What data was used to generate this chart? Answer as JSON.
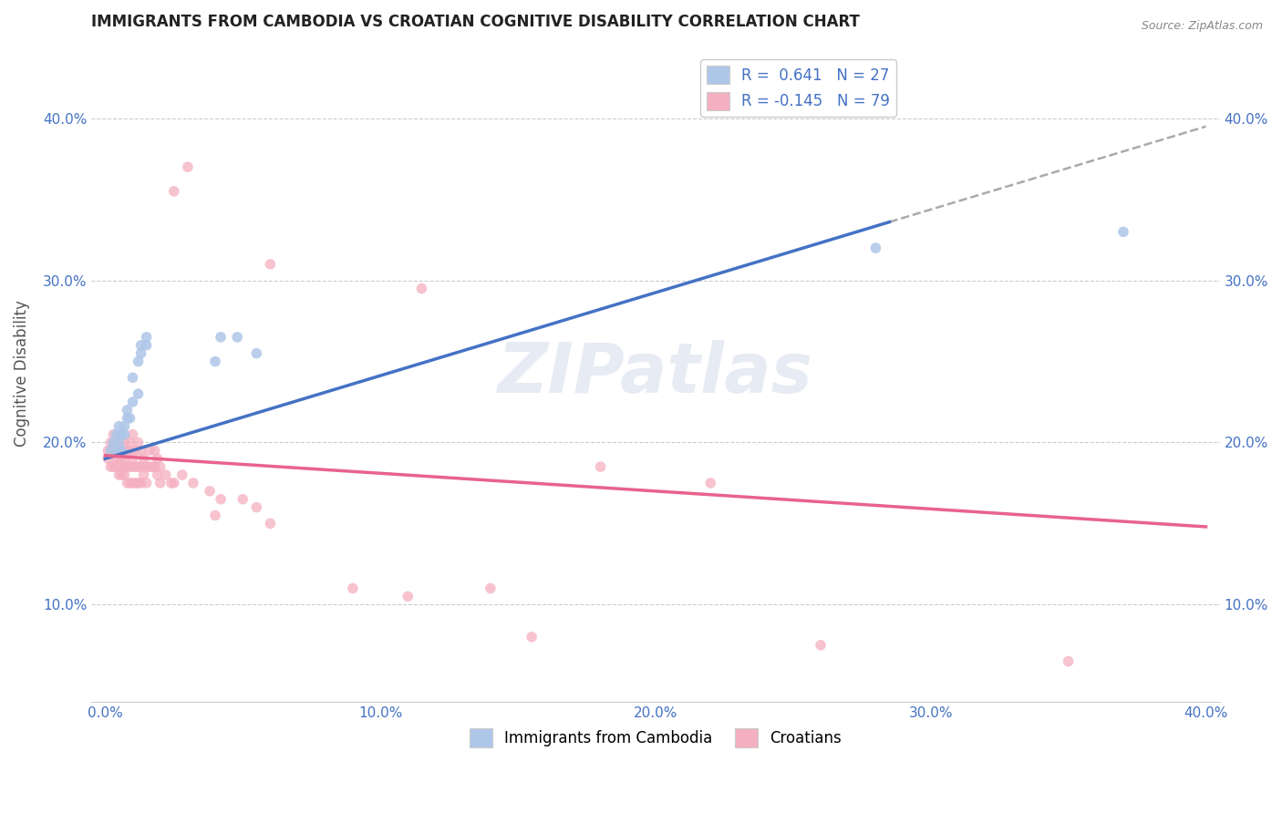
{
  "title": "IMMIGRANTS FROM CAMBODIA VS CROATIAN COGNITIVE DISABILITY CORRELATION CHART",
  "source_text": "Source: ZipAtlas.com",
  "ylabel": "Cognitive Disability",
  "xlabel": "",
  "xlim": [
    -0.005,
    0.405
  ],
  "ylim": [
    0.04,
    0.445
  ],
  "yticks": [
    0.1,
    0.2,
    0.3,
    0.4
  ],
  "ytick_labels": [
    "10.0%",
    "20.0%",
    "30.0%",
    "40.0%"
  ],
  "xticks": [
    0.0,
    0.1,
    0.2,
    0.3,
    0.4
  ],
  "xtick_labels": [
    "0.0%",
    "10.0%",
    "20.0%",
    "30.0%",
    "40.0%"
  ],
  "blue_color": "#aec6e8",
  "blue_line_color": "#4472c4",
  "pink_color": "#f4afc0",
  "pink_line_color": "#e8638c",
  "blue_scatter": [
    [
      0.002,
      0.195
    ],
    [
      0.003,
      0.2
    ],
    [
      0.004,
      0.205
    ],
    [
      0.004,
      0.195
    ],
    [
      0.005,
      0.2
    ],
    [
      0.005,
      0.21
    ],
    [
      0.006,
      0.195
    ],
    [
      0.006,
      0.205
    ],
    [
      0.007,
      0.205
    ],
    [
      0.007,
      0.21
    ],
    [
      0.008,
      0.22
    ],
    [
      0.008,
      0.215
    ],
    [
      0.009,
      0.215
    ],
    [
      0.01,
      0.225
    ],
    [
      0.01,
      0.24
    ],
    [
      0.012,
      0.23
    ],
    [
      0.012,
      0.25
    ],
    [
      0.013,
      0.255
    ],
    [
      0.013,
      0.26
    ],
    [
      0.015,
      0.26
    ],
    [
      0.015,
      0.265
    ],
    [
      0.04,
      0.25
    ],
    [
      0.042,
      0.265
    ],
    [
      0.048,
      0.265
    ],
    [
      0.055,
      0.255
    ],
    [
      0.28,
      0.32
    ],
    [
      0.37,
      0.33
    ]
  ],
  "pink_scatter": [
    [
      0.001,
      0.19
    ],
    [
      0.001,
      0.195
    ],
    [
      0.002,
      0.185
    ],
    [
      0.002,
      0.195
    ],
    [
      0.002,
      0.2
    ],
    [
      0.003,
      0.185
    ],
    [
      0.003,
      0.195
    ],
    [
      0.003,
      0.2
    ],
    [
      0.003,
      0.205
    ],
    [
      0.004,
      0.185
    ],
    [
      0.004,
      0.19
    ],
    [
      0.004,
      0.195
    ],
    [
      0.004,
      0.2
    ],
    [
      0.005,
      0.18
    ],
    [
      0.005,
      0.19
    ],
    [
      0.005,
      0.195
    ],
    [
      0.005,
      0.2
    ],
    [
      0.006,
      0.18
    ],
    [
      0.006,
      0.185
    ],
    [
      0.006,
      0.19
    ],
    [
      0.006,
      0.195
    ],
    [
      0.007,
      0.18
    ],
    [
      0.007,
      0.185
    ],
    [
      0.007,
      0.19
    ],
    [
      0.007,
      0.2
    ],
    [
      0.008,
      0.175
    ],
    [
      0.008,
      0.185
    ],
    [
      0.008,
      0.195
    ],
    [
      0.009,
      0.175
    ],
    [
      0.009,
      0.185
    ],
    [
      0.009,
      0.195
    ],
    [
      0.009,
      0.2
    ],
    [
      0.01,
      0.175
    ],
    [
      0.01,
      0.185
    ],
    [
      0.01,
      0.19
    ],
    [
      0.01,
      0.205
    ],
    [
      0.011,
      0.175
    ],
    [
      0.011,
      0.185
    ],
    [
      0.011,
      0.195
    ],
    [
      0.012,
      0.175
    ],
    [
      0.012,
      0.185
    ],
    [
      0.012,
      0.2
    ],
    [
      0.013,
      0.175
    ],
    [
      0.013,
      0.185
    ],
    [
      0.013,
      0.195
    ],
    [
      0.014,
      0.18
    ],
    [
      0.014,
      0.19
    ],
    [
      0.015,
      0.175
    ],
    [
      0.015,
      0.185
    ],
    [
      0.016,
      0.185
    ],
    [
      0.016,
      0.195
    ],
    [
      0.017,
      0.185
    ],
    [
      0.018,
      0.185
    ],
    [
      0.018,
      0.195
    ],
    [
      0.019,
      0.18
    ],
    [
      0.019,
      0.19
    ],
    [
      0.02,
      0.175
    ],
    [
      0.02,
      0.185
    ],
    [
      0.022,
      0.18
    ],
    [
      0.024,
      0.175
    ],
    [
      0.025,
      0.175
    ],
    [
      0.028,
      0.18
    ],
    [
      0.032,
      0.175
    ],
    [
      0.038,
      0.17
    ],
    [
      0.04,
      0.155
    ],
    [
      0.042,
      0.165
    ],
    [
      0.05,
      0.165
    ],
    [
      0.055,
      0.16
    ],
    [
      0.06,
      0.15
    ],
    [
      0.18,
      0.185
    ],
    [
      0.22,
      0.175
    ],
    [
      0.025,
      0.355
    ],
    [
      0.03,
      0.37
    ],
    [
      0.06,
      0.31
    ],
    [
      0.115,
      0.295
    ],
    [
      0.09,
      0.11
    ],
    [
      0.11,
      0.105
    ],
    [
      0.14,
      0.11
    ],
    [
      0.155,
      0.08
    ],
    [
      0.26,
      0.075
    ],
    [
      0.35,
      0.065
    ]
  ],
  "background_color": "#ffffff",
  "grid_color": "#cccccc",
  "title_color": "#222222",
  "axis_label_color": "#555555",
  "tick_label_color": "#4472c4",
  "marker_size": 70,
  "dashed_line_color": "#aaaaaa",
  "blue_line_x_end_solid": 0.285,
  "blue_line_start_y": 0.19,
  "blue_line_end_y": 0.395,
  "pink_line_start_y": 0.192,
  "pink_line_end_y": 0.148
}
